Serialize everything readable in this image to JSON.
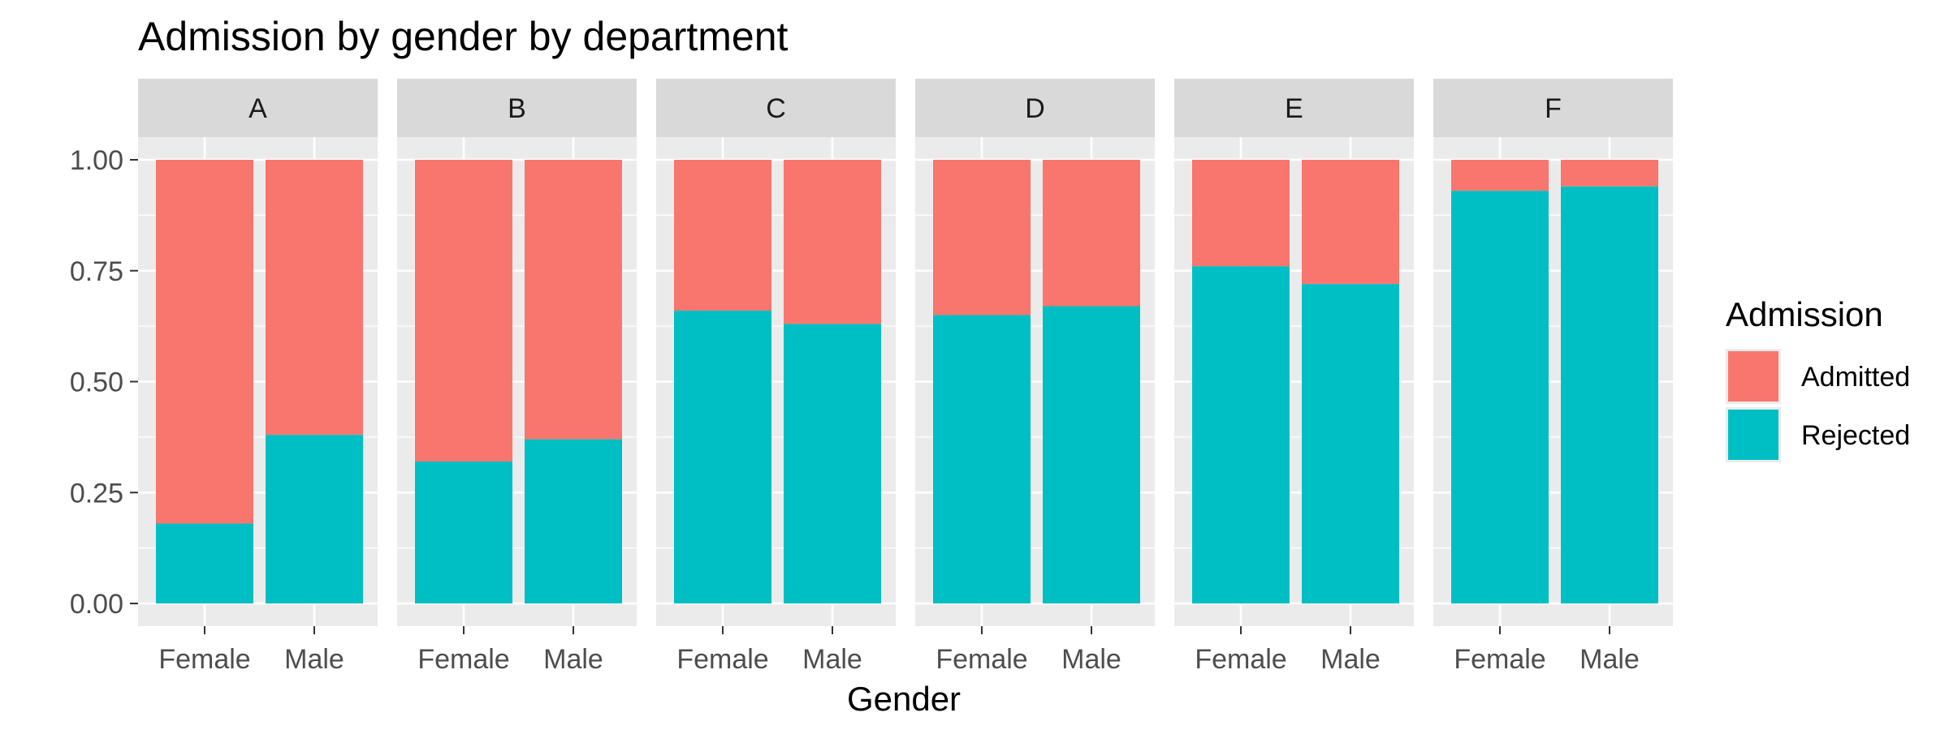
{
  "chart_data": {
    "type": "bar",
    "stacked": true,
    "title": "Admission by gender by department",
    "xlabel": "Gender",
    "ylabel": "",
    "ylim": [
      0,
      1
    ],
    "yticks": [
      "0.00",
      "0.25",
      "0.50",
      "0.75",
      "1.00"
    ],
    "ytick_values": [
      0,
      0.25,
      0.5,
      0.75,
      1.0
    ],
    "categories": [
      "Female",
      "Male"
    ],
    "facets": [
      {
        "label": "A",
        "rejected": [
          0.18,
          0.38
        ]
      },
      {
        "label": "B",
        "rejected": [
          0.32,
          0.37
        ]
      },
      {
        "label": "C",
        "rejected": [
          0.66,
          0.63
        ]
      },
      {
        "label": "D",
        "rejected": [
          0.65,
          0.67
        ]
      },
      {
        "label": "E",
        "rejected": [
          0.76,
          0.72
        ]
      },
      {
        "label": "F",
        "rejected": [
          0.93,
          0.94
        ]
      }
    ],
    "legend": {
      "title": "Admission",
      "placement": "right",
      "entries": [
        {
          "name": "Admitted",
          "color": "#F8766D"
        },
        {
          "name": "Rejected",
          "color": "#00BFC4"
        }
      ]
    },
    "colors": {
      "panel_bg": "#EBEBEB",
      "strip_bg": "#D9D9D9",
      "grid": "#FFFFFF"
    }
  }
}
